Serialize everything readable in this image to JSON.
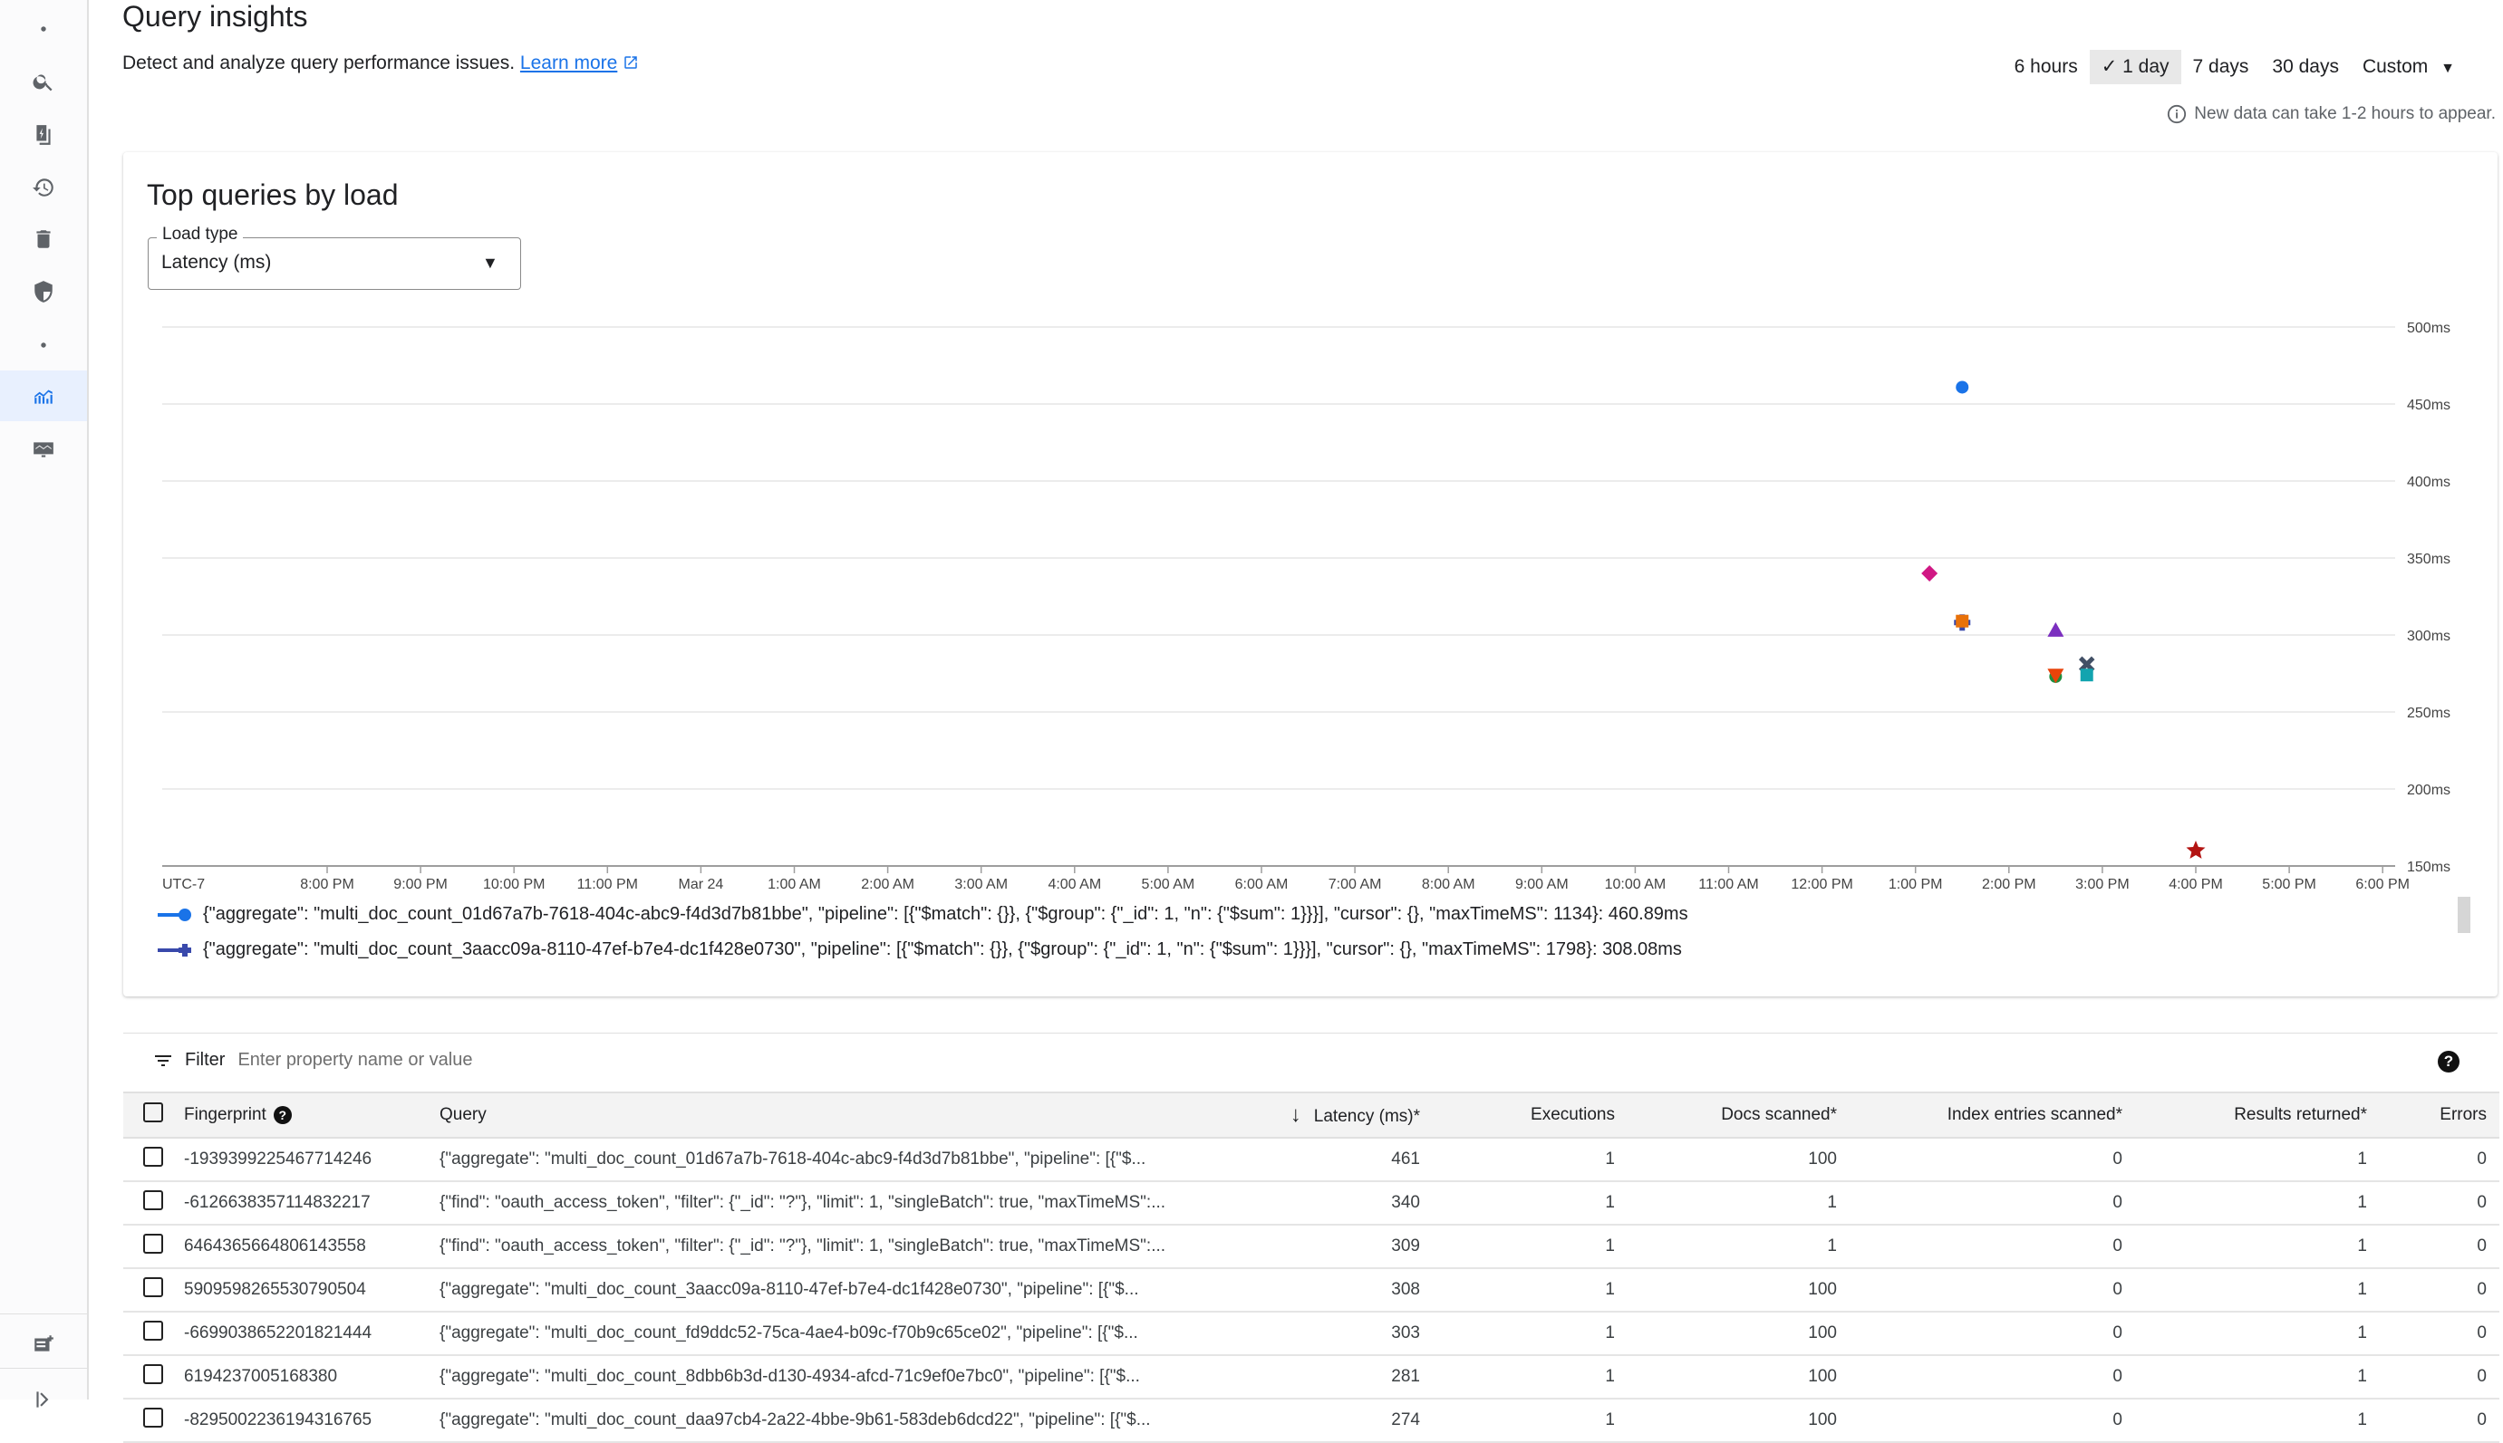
{
  "header": {
    "title": "Query insights",
    "subtitle": "Detect and analyze query performance issues.",
    "learn_more": "Learn more",
    "note": "New data can take 1-2 hours to appear."
  },
  "time_ranges": [
    {
      "label": "6 hours",
      "selected": false
    },
    {
      "label": "1 day",
      "selected": true
    },
    {
      "label": "7 days",
      "selected": false
    },
    {
      "label": "30 days",
      "selected": false
    },
    {
      "label": "Custom",
      "selected": false
    }
  ],
  "sidebar": {
    "items": [
      "dot-icon",
      "search-icon",
      "document-bolt-icon",
      "history-icon",
      "trash-icon",
      "shield-icon",
      "dot-icon",
      "insights-chart-icon",
      "monitor-icon"
    ],
    "active": "insights-chart-icon",
    "bottom": [
      "release-notes-icon",
      "expand-icon"
    ]
  },
  "card": {
    "title": "Top queries by load",
    "load_type_label": "Load type",
    "load_type_value": "Latency (ms)"
  },
  "chart_data": {
    "type": "scatter",
    "timezone_label": "UTC-7",
    "x_ticks": [
      "8:00 PM",
      "9:00 PM",
      "10:00 PM",
      "11:00 PM",
      "Mar 24",
      "1:00 AM",
      "2:00 AM",
      "3:00 AM",
      "4:00 AM",
      "5:00 AM",
      "6:00 AM",
      "7:00 AM",
      "8:00 AM",
      "9:00 AM",
      "10:00 AM",
      "11:00 AM",
      "12:00 PM",
      "1:00 PM",
      "2:00 PM",
      "3:00 PM",
      "4:00 PM",
      "5:00 PM",
      "6:00 PM"
    ],
    "y_ticks": [
      "150ms",
      "200ms",
      "250ms",
      "300ms",
      "350ms",
      "400ms",
      "450ms",
      "500ms"
    ],
    "ylim": [
      150,
      500
    ],
    "grid": true,
    "y_axis_position": "right",
    "points": [
      {
        "x": "1:30 PM",
        "y": 460.89,
        "shape": "circle",
        "color": "#1a73e8"
      },
      {
        "x": "1:09 PM",
        "y": 340,
        "shape": "diamond",
        "color": "#d01884"
      },
      {
        "x": "1:30 PM",
        "y": 308.08,
        "shape": "plus",
        "color": "#3949ab"
      },
      {
        "x": "1:30 PM",
        "y": 309,
        "shape": "square",
        "color": "#e8710a"
      },
      {
        "x": "2:30 PM",
        "y": 303,
        "shape": "triangle-up",
        "color": "#7b2fbf"
      },
      {
        "x": "2:50 PM",
        "y": 281,
        "shape": "x",
        "color": "#425066"
      },
      {
        "x": "2:30 PM",
        "y": 273,
        "shape": "circle",
        "color": "#1e8e3e"
      },
      {
        "x": "2:30 PM",
        "y": 274,
        "shape": "triangle-down",
        "color": "#e8430a"
      },
      {
        "x": "2:50 PM",
        "y": 274,
        "shape": "square",
        "color": "#12a4af"
      },
      {
        "x": "4:00 PM",
        "y": 160,
        "shape": "star",
        "color": "#b31412"
      }
    ],
    "legend": [
      {
        "text": "{\"aggregate\": \"multi_doc_count_01d67a7b-7618-404c-abc9-f4d3d7b81bbe\", \"pipeline\": [{\"$match\": {}}, {\"$group\": {\"_id\": 1, \"n\": {\"$sum\": 1}}}], \"cursor\": {}, \"maxTimeMS\": 1134}: 460.89ms",
        "shape": "circle",
        "color": "#1a73e8"
      },
      {
        "text": "{\"aggregate\": \"multi_doc_count_3aacc09a-8110-47ef-b7e4-dc1f428e0730\", \"pipeline\": [{\"$match\": {}}, {\"$group\": {\"_id\": 1, \"n\": {\"$sum\": 1}}}], \"cursor\": {}, \"maxTimeMS\": 1798}: 308.08ms",
        "shape": "plus",
        "color": "#3949ab"
      }
    ]
  },
  "filter": {
    "label": "Filter",
    "placeholder": "Enter property name or value"
  },
  "table": {
    "columns": [
      "Fingerprint",
      "Query",
      "Latency (ms)*",
      "Executions",
      "Docs scanned*",
      "Index entries scanned*",
      "Results returned*",
      "Errors"
    ],
    "sort_column": "Latency (ms)*",
    "rows": [
      {
        "fingerprint": "-1939399225467714246",
        "query": "{\"aggregate\": \"multi_doc_count_01d67a7b-7618-404c-abc9-f4d3d7b81bbe\", \"pipeline\": [{\"$...",
        "latency": "461",
        "executions": "1",
        "docs": "100",
        "index": "0",
        "results": "1",
        "errors": "0"
      },
      {
        "fingerprint": "-6126638357114832217",
        "query": "{\"find\": \"oauth_access_token\", \"filter\": {\"_id\": \"?\"}, \"limit\": 1, \"singleBatch\": true, \"maxTimeMS\":...",
        "latency": "340",
        "executions": "1",
        "docs": "1",
        "index": "0",
        "results": "1",
        "errors": "0"
      },
      {
        "fingerprint": "6464365664806143558",
        "query": "{\"find\": \"oauth_access_token\", \"filter\": {\"_id\": \"?\"}, \"limit\": 1, \"singleBatch\": true, \"maxTimeMS\":...",
        "latency": "309",
        "executions": "1",
        "docs": "1",
        "index": "0",
        "results": "1",
        "errors": "0"
      },
      {
        "fingerprint": "5909598265530790504",
        "query": "{\"aggregate\": \"multi_doc_count_3aacc09a-8110-47ef-b7e4-dc1f428e0730\", \"pipeline\": [{\"$...",
        "latency": "308",
        "executions": "1",
        "docs": "100",
        "index": "0",
        "results": "1",
        "errors": "0"
      },
      {
        "fingerprint": "-6699038652201821444",
        "query": "{\"aggregate\": \"multi_doc_count_fd9ddc52-75ca-4ae4-b09c-f70b9c65ce02\", \"pipeline\": [{\"$...",
        "latency": "303",
        "executions": "1",
        "docs": "100",
        "index": "0",
        "results": "1",
        "errors": "0"
      },
      {
        "fingerprint": "6194237005168380",
        "query": "{\"aggregate\": \"multi_doc_count_8dbb6b3d-d130-4934-afcd-71c9ef0e7bc0\", \"pipeline\": [{\"$...",
        "latency": "281",
        "executions": "1",
        "docs": "100",
        "index": "0",
        "results": "1",
        "errors": "0"
      },
      {
        "fingerprint": "-8295002236194316765",
        "query": "{\"aggregate\": \"multi_doc_count_daa97cb4-2a22-4bbe-9b61-583deb6dcd22\", \"pipeline\": [{\"$...",
        "latency": "274",
        "executions": "1",
        "docs": "100",
        "index": "0",
        "results": "1",
        "errors": "0"
      }
    ]
  }
}
